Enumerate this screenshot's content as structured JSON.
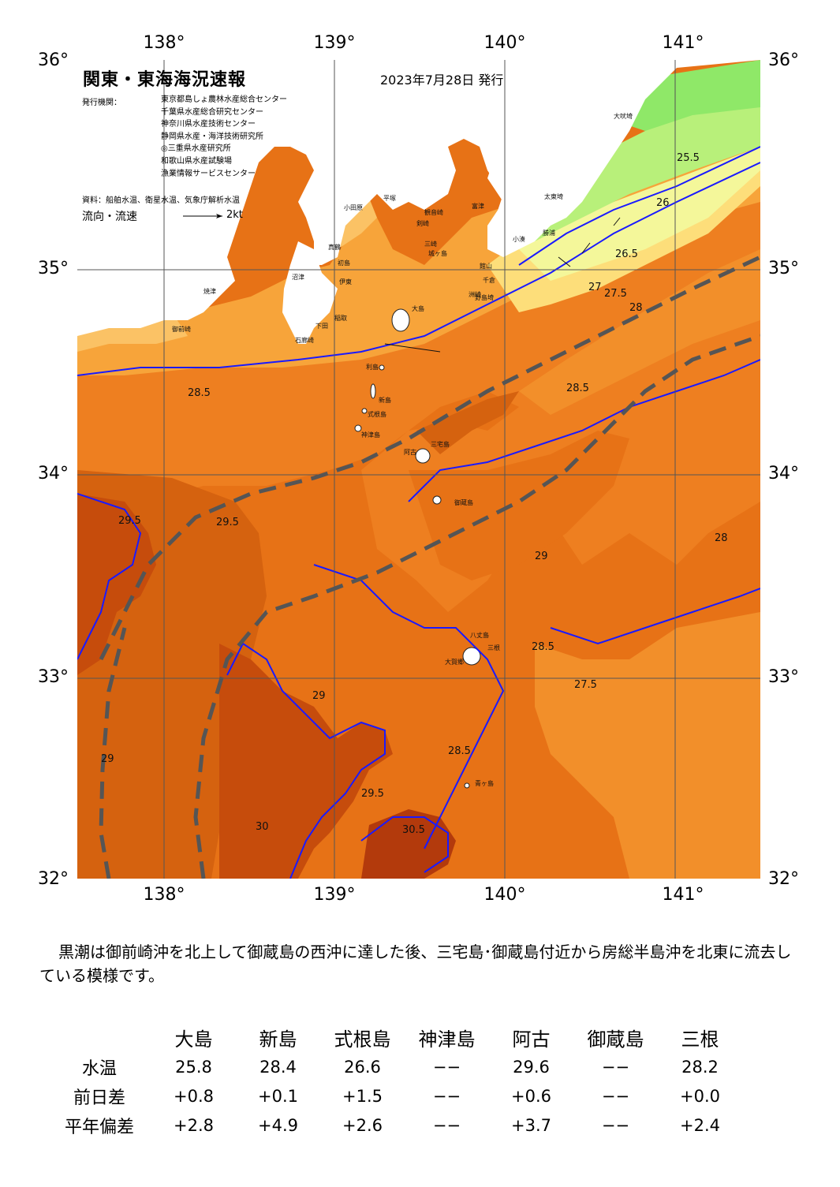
{
  "header": {
    "title": "関東・東海海況速報",
    "date": "2023年7月28日 発行",
    "institutions_label": "発行機関：",
    "institutions": [
      "東京都島しょ農林水産総合センター",
      "千葉県水産総合研究センター",
      "神奈川県水産技術センター",
      "静岡県水産・海洋技術研究所",
      "◎三重県水産研究所",
      "和歌山県水産試験場",
      "漁業情報サービスセンター"
    ],
    "source": "資料：船舶水温、衛星水温、気象庁解析水温",
    "flow_label": "流向・流速",
    "flow_unit": "2kt"
  },
  "axes": {
    "longitudes": [
      "138°",
      "139°",
      "140°",
      "141°"
    ],
    "latitudes": [
      "36°",
      "35°",
      "34°",
      "33°",
      "32°"
    ]
  },
  "map": {
    "colors": {
      "sea_27_5": "#f7a43a",
      "sea_28": "#f28f2a",
      "sea_28_5": "#ee7f20",
      "sea_29": "#e77216",
      "sea_29_5": "#d5620f",
      "sea_30": "#c64c0c",
      "sea_30_5": "#b33a0c",
      "sea_27": "#fbc265",
      "sea_26_5": "#fdde7a",
      "sea_26": "#f4f79a",
      "sea_25_5": "#b8f07a",
      "sea_25": "#8fe868",
      "land": "#ffffff",
      "isotherm_half": "#c9c9c9",
      "isotherm_whole": "#1a1aff",
      "kuroshio_axis": "#555555"
    },
    "isotherm_labels": [
      "25.5",
      "26",
      "26.5",
      "27",
      "27.5",
      "28",
      "28.5",
      "29",
      "29.5",
      "30",
      "30.5"
    ],
    "place_names": [
      "大吠埼",
      "太東埼",
      "勝浦",
      "小湊",
      "洲崎",
      "館山",
      "千倉",
      "野島埼",
      "富津",
      "観音崎",
      "剣崎",
      "三崎",
      "城ヶ島",
      "平塚",
      "小田原",
      "初島",
      "真鶴",
      "伊東",
      "大島",
      "稲取",
      "下田",
      "石廊崎",
      "利島",
      "新島",
      "式根島",
      "神津島",
      "三宅島",
      "阿古",
      "御蔵島",
      "八丈島",
      "青ヶ島",
      "三根",
      "大賀郷",
      "沼津",
      "焼津",
      "御前崎"
    ]
  },
  "comment": "黒潮は御前崎沖を北上して御蔵島の西沖に達した後、三宅島･御蔵島付近から房総半島沖を北東に流去している模様です。",
  "table": {
    "columns": [
      "大島",
      "新島",
      "式根島",
      "神津島",
      "阿古",
      "御蔵島",
      "三根"
    ],
    "rows": [
      {
        "label": "水温",
        "values": [
          "25.8",
          "28.4",
          "26.6",
          "−−",
          "29.6",
          "−−",
          "28.2"
        ]
      },
      {
        "label": "前日差",
        "values": [
          "+0.8",
          "+0.1",
          "+1.5",
          "−−",
          "+0.6",
          "−−",
          "+0.0"
        ]
      },
      {
        "label": "平年偏差",
        "values": [
          "+2.8",
          "+4.9",
          "+2.6",
          "−−",
          "+3.7",
          "−−",
          "+2.4"
        ]
      }
    ]
  }
}
